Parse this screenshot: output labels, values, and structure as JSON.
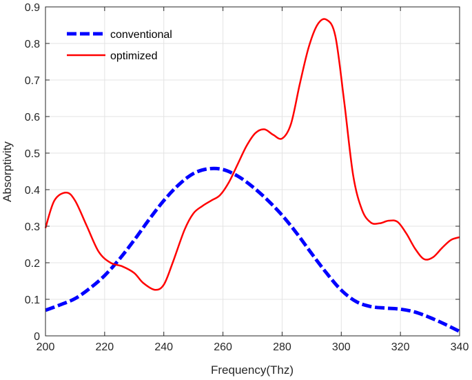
{
  "chart_data": {
    "type": "line",
    "xlabel": "Frequency(Thz)",
    "ylabel": "Absorptivity",
    "xlim": [
      200,
      340
    ],
    "ylim": [
      0,
      0.9
    ],
    "xticks": [
      200,
      220,
      240,
      260,
      280,
      300,
      320,
      340
    ],
    "yticks": [
      0,
      0.1,
      0.2,
      0.3,
      0.4,
      0.5,
      0.6,
      0.7,
      0.8,
      0.9
    ],
    "xtick_labels": [
      "200",
      "220",
      "240",
      "260",
      "280",
      "300",
      "320",
      "340"
    ],
    "ytick_labels": [
      "0",
      "0.1",
      "0.2",
      "0.3",
      "0.4",
      "0.5",
      "0.6",
      "0.7",
      "0.8",
      "0.9"
    ],
    "grid": true,
    "legend_position": "top-left",
    "series": [
      {
        "name": "conventional",
        "color": "#0000ff",
        "style": "dashed",
        "x": [
          200,
          205,
          210,
          215,
          220,
          225,
          230,
          235,
          240,
          245,
          250,
          255,
          260,
          265,
          270,
          275,
          280,
          285,
          290,
          295,
          300,
          305,
          310,
          315,
          320,
          325,
          330,
          335,
          340
        ],
        "y": [
          0.07,
          0.085,
          0.102,
          0.13,
          0.165,
          0.21,
          0.262,
          0.318,
          0.37,
          0.413,
          0.444,
          0.457,
          0.455,
          0.437,
          0.408,
          0.372,
          0.33,
          0.28,
          0.225,
          0.172,
          0.125,
          0.094,
          0.08,
          0.076,
          0.073,
          0.065,
          0.05,
          0.032,
          0.012
        ]
      },
      {
        "name": "optimized",
        "color": "#ff0000",
        "style": "solid",
        "x": [
          200,
          203,
          207,
          210,
          214,
          218,
          222,
          226,
          230,
          233,
          237,
          240,
          243,
          247,
          250,
          253,
          256,
          259,
          262,
          265,
          268,
          271,
          274,
          277,
          280,
          283,
          286,
          289,
          292,
          295,
          298,
          301,
          304,
          307,
          310,
          313,
          316,
          319,
          322,
          325,
          328,
          331,
          334,
          337,
          340
        ],
        "y": [
          0.295,
          0.37,
          0.392,
          0.37,
          0.3,
          0.23,
          0.2,
          0.19,
          0.172,
          0.145,
          0.126,
          0.14,
          0.2,
          0.29,
          0.335,
          0.355,
          0.37,
          0.385,
          0.42,
          0.47,
          0.52,
          0.555,
          0.565,
          0.55,
          0.54,
          0.58,
          0.69,
          0.79,
          0.852,
          0.865,
          0.82,
          0.64,
          0.44,
          0.345,
          0.31,
          0.308,
          0.315,
          0.312,
          0.28,
          0.238,
          0.21,
          0.215,
          0.24,
          0.262,
          0.27
        ]
      }
    ]
  }
}
